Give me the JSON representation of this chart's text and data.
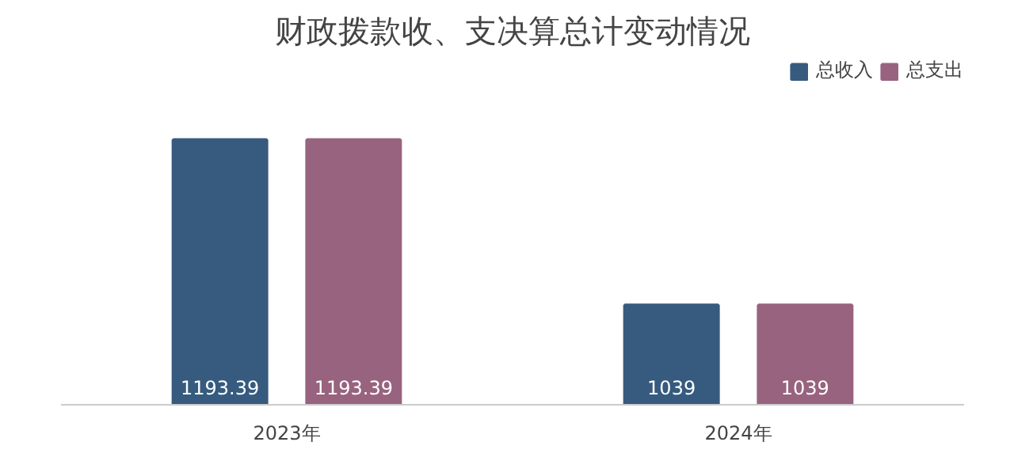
{
  "chart_data": {
    "type": "bar",
    "title": "财政拨款收、支决算总计变动情况",
    "categories": [
      "2023年",
      "2024年"
    ],
    "series": [
      {
        "name": "总收入",
        "color": "#365b7e",
        "values": [
          1193.39,
          1039
        ]
      },
      {
        "name": "总支出",
        "color": "#98637e",
        "values": [
          1193.39,
          1039
        ]
      }
    ],
    "ylim": [
      946,
      1270
    ],
    "data_labels": true,
    "legend": "top right",
    "grid": false
  }
}
